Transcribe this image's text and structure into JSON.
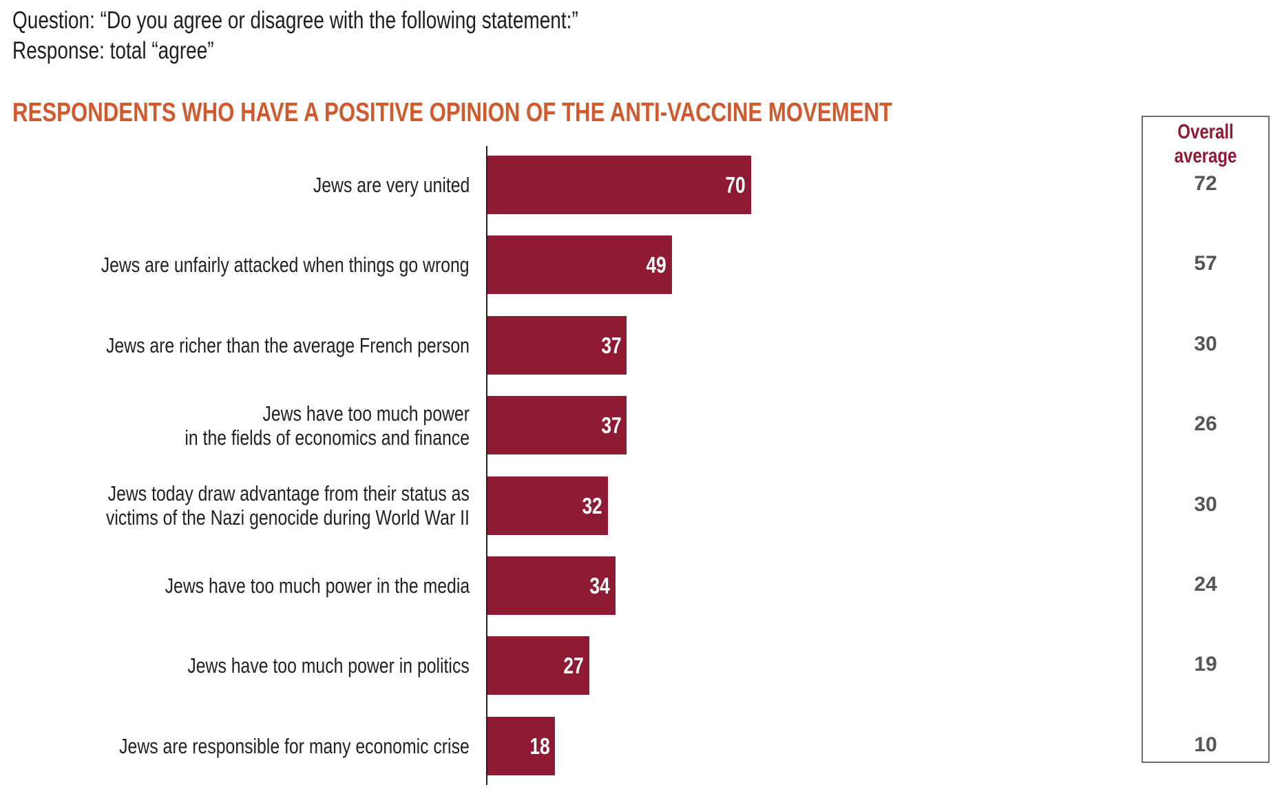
{
  "question": "Question: “Do you agree or disagree with the following statement:”",
  "response": "Response: total “agree”",
  "chart_data": {
    "type": "bar",
    "orientation": "horizontal",
    "title": "RESPONDENTS WHO HAVE A POSITIVE OPINION OF THE ANTI-VACCINE MOVEMENT",
    "categories": [
      "Jews are very united",
      "Jews are unfairly attacked when things go wrong",
      "Jews are richer than the average French person",
      "Jews have too much power\nin the fields of economics and finance",
      "Jews today draw advantage from their status as\nvictims of the Nazi genocide during World War II",
      "Jews have too much power in the media",
      "Jews have too much power in politics",
      "Jews are responsible for many economic crise"
    ],
    "values": [
      70,
      49,
      37,
      37,
      32,
      34,
      27,
      18
    ],
    "overall_average_label": "Overall average",
    "overall_average": [
      72,
      57,
      30,
      26,
      30,
      24,
      19,
      10
    ],
    "xlim": [
      0,
      100
    ],
    "colors": {
      "bar": "#8e1a33",
      "title": "#d0592d",
      "average": "#555555"
    }
  }
}
